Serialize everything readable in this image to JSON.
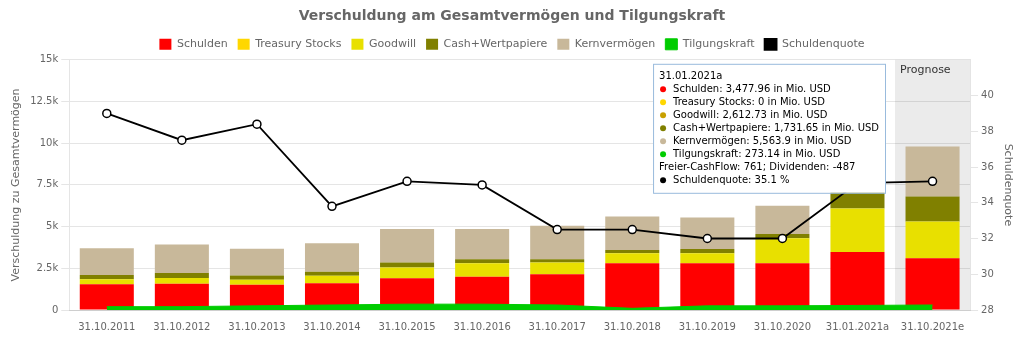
{
  "chart_data": {
    "type": "bar",
    "title": "Verschuldung am Gesamtvermögen und Tilgungskraft",
    "ylabel": "Verschuldung zu Gesamtvermögen",
    "y2label": "Schuldenquote",
    "categories": [
      "31.10.2011",
      "31.10.2012",
      "31.10.2013",
      "31.10.2014",
      "31.10.2015",
      "31.10.2016",
      "31.10.2017",
      "31.10.2018",
      "31.10.2019",
      "31.10.2020",
      "31.01.2021a",
      "31.10.2021e"
    ],
    "stacked": true,
    "grid": true,
    "legend": "top",
    "series": [
      {
        "name": "Schulden",
        "color": "#ff0000",
        "values": [
          1550,
          1570,
          1520,
          1600,
          1900,
          2000,
          2150,
          2800,
          2800,
          2800,
          3478,
          3100
        ]
      },
      {
        "name": "Treasury Stocks",
        "color": "#ffd700",
        "values": [
          0,
          0,
          0,
          0,
          0,
          0,
          0,
          0,
          0,
          0,
          0,
          0
        ]
      },
      {
        "name": "Goodwill",
        "color": "#e8e000",
        "values": [
          300,
          350,
          300,
          450,
          650,
          800,
          700,
          600,
          600,
          1500,
          2613,
          2200
        ]
      },
      {
        "name": "Cash+Wertpapiere",
        "color": "#808000",
        "values": [
          250,
          300,
          250,
          250,
          300,
          250,
          200,
          200,
          250,
          250,
          1732,
          1500
        ]
      },
      {
        "name": "Kernvermögen",
        "color": "#c8b89a",
        "values": [
          1600,
          1700,
          1600,
          1700,
          2000,
          1800,
          2000,
          2000,
          1900,
          1700,
          5564,
          3000
        ]
      },
      {
        "name": "Tilgungskraft",
        "type": "area",
        "color": "#00cc00",
        "values": [
          200,
          200,
          250,
          300,
          350,
          350,
          300,
          100,
          250,
          250,
          273,
          300
        ]
      },
      {
        "name": "Schuldenquote",
        "type": "line",
        "axis": "y2",
        "color": "#000000",
        "marker": "circle",
        "values": [
          39.0,
          37.5,
          38.4,
          33.8,
          35.2,
          35.0,
          32.5,
          32.5,
          32.0,
          32.0,
          35.1,
          35.2
        ]
      }
    ],
    "ylim": [
      0,
      15000
    ],
    "yticks": [
      0,
      {
        "value": 2500,
        "label": "2.5k"
      },
      {
        "value": 5000,
        "label": "5k"
      },
      {
        "value": 7500,
        "label": "7.5k"
      },
      {
        "value": 10000,
        "label": "10k"
      },
      {
        "value": 12500,
        "label": "12.5k"
      },
      {
        "value": 15000,
        "label": "15k"
      }
    ],
    "y2lim": [
      28,
      42
    ],
    "y2ticks": [
      28,
      30,
      32,
      34,
      36,
      38,
      40
    ],
    "annotations": [
      {
        "type": "region",
        "text": "Prognose",
        "x": "31.10.2021e",
        "color": "#ebebeb"
      },
      {
        "type": "box",
        "title": "31.01.2021a",
        "lines": [
          {
            "text": "Schulden: 3,477.96 in Mio. USD",
            "color": "#ff0000"
          },
          {
            "text": "Treasury Stocks: 0 in Mio. USD",
            "color": "#ffd700"
          },
          {
            "text": "Goodwill: 2,612.73 in Mio. USD",
            "color": "#c8a000"
          },
          {
            "text": "Cash+Wertpapiere: 1,731.65 in Mio. USD",
            "color": "#808000"
          },
          {
            "text": "Kernvermögen: 5,563.9 in Mio. USD",
            "color": "#c8b89a"
          },
          {
            "text": "Tilgungskraft: 273.14 in Mio. USD",
            "color": "#00cc00"
          },
          {
            "text": "Freier-CashFlow: 761; Dividenden: -487",
            "color": null
          },
          {
            "text": "Schuldenquote: 35.1 %",
            "color": "#000000"
          }
        ]
      }
    ]
  }
}
